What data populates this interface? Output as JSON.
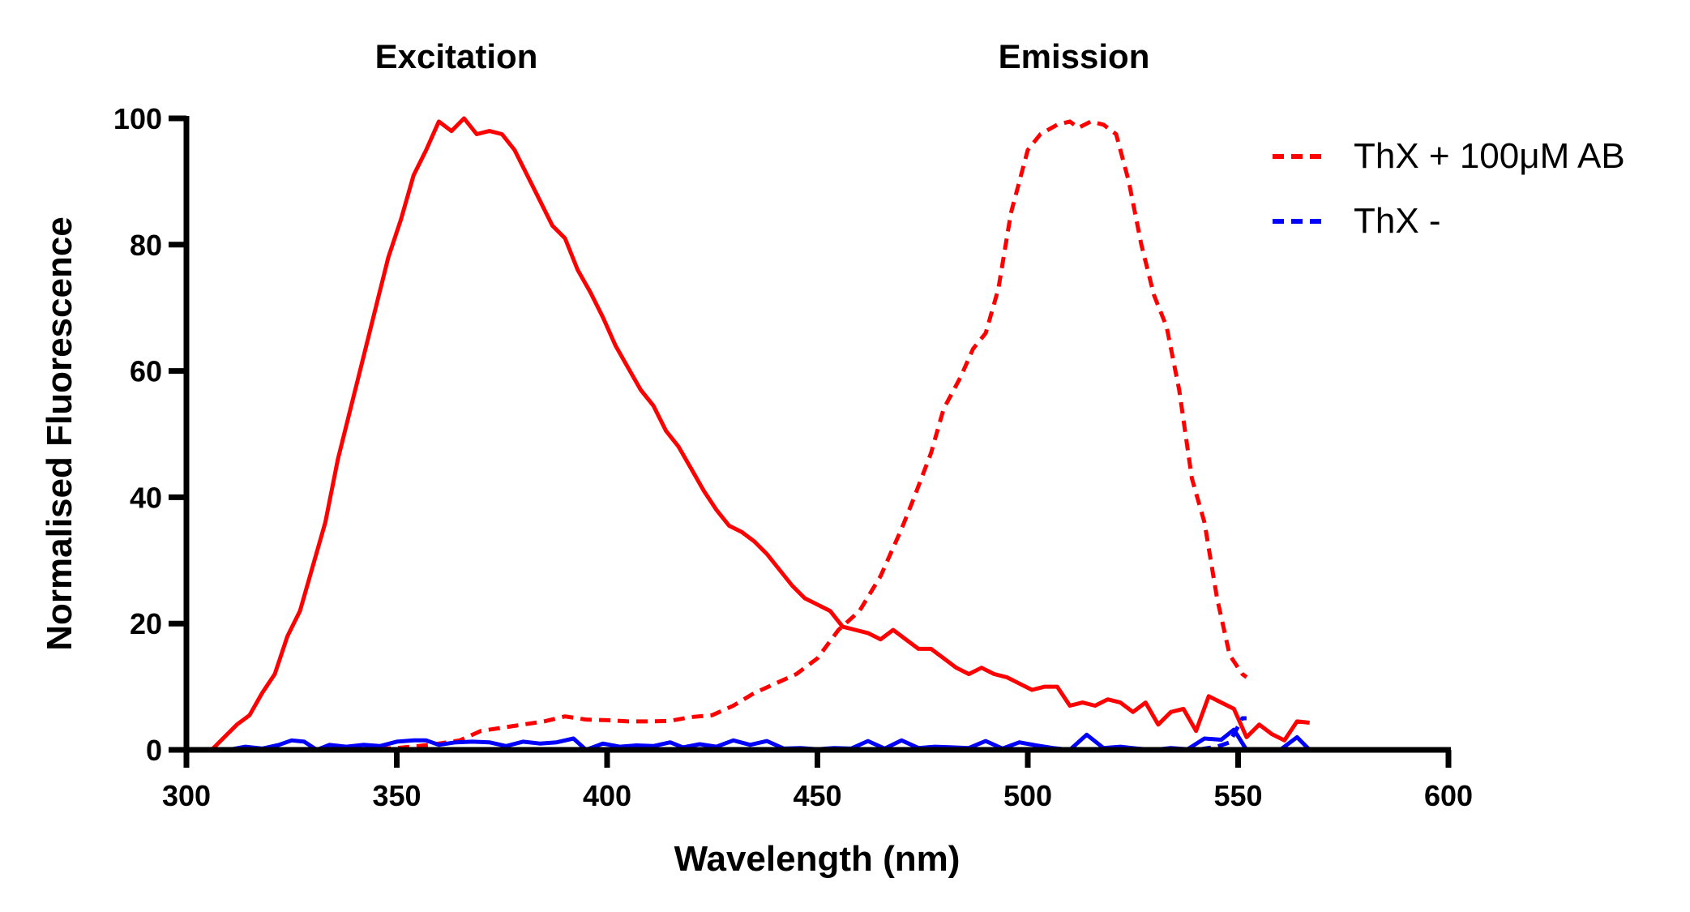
{
  "chart_data": {
    "type": "line",
    "xlabel": "Wavelength (nm)",
    "ylabel": "Normalised Fluorescence",
    "xlim": [
      300,
      600
    ],
    "ylim": [
      0,
      100
    ],
    "xticks": [
      300,
      350,
      400,
      450,
      500,
      550,
      600
    ],
    "yticks": [
      0,
      20,
      40,
      60,
      80,
      100
    ],
    "grid": false,
    "legend_position": "top-right",
    "annotations": [
      "Excitation",
      "Emission"
    ],
    "legend": [
      {
        "label": "ThX + 100μM AB",
        "color": "#ff0000",
        "dash": "dashed"
      },
      {
        "label": "ThX -",
        "color": "#0000ff",
        "dash": "dashed"
      }
    ],
    "series": [
      {
        "group": "Excitation",
        "color": "#ff0000",
        "style": "solid",
        "x": [
          306,
          309,
          312,
          315,
          318,
          321,
          324,
          327,
          330,
          333,
          336,
          339,
          342,
          345,
          348,
          351,
          354,
          357,
          360,
          363,
          366,
          369,
          372,
          375,
          378,
          381,
          384,
          387,
          390,
          393,
          396,
          399,
          402,
          405,
          408,
          411,
          414,
          417,
          420,
          423,
          426,
          429,
          432,
          435,
          438,
          441,
          444,
          447,
          450,
          453,
          456,
          459,
          462,
          465,
          468,
          471,
          474,
          477,
          480,
          483,
          486,
          489,
          492,
          495,
          498,
          501,
          504,
          507,
          510,
          513,
          516,
          519,
          522,
          525,
          528,
          531,
          534,
          537,
          540,
          543,
          546,
          549,
          552,
          555,
          558,
          561,
          564,
          567
        ],
        "y": [
          0,
          2,
          4,
          5.5,
          9,
          12,
          18,
          22,
          29,
          36,
          46,
          54,
          62,
          70,
          78,
          84,
          91,
          95,
          99.5,
          98,
          100,
          97.5,
          98,
          97.5,
          95,
          91,
          87,
          83,
          81,
          76,
          72.5,
          68.5,
          64,
          60.5,
          57,
          54.5,
          50.5,
          48,
          44.5,
          41,
          38,
          35.5,
          34.5,
          33,
          31,
          28.5,
          26,
          24,
          23,
          22,
          19.5,
          19,
          18.5,
          17.5,
          19,
          17.5,
          16,
          16,
          14.5,
          13,
          12,
          13,
          12,
          11.5,
          10.5,
          9.5,
          10,
          10,
          7,
          7.5,
          7,
          8,
          7.5,
          6,
          7.5,
          4,
          6,
          6.5,
          3,
          8.5,
          7.5,
          6.5,
          2,
          4,
          2.5,
          1.5,
          4.5,
          4.3
        ]
      },
      {
        "group": "Emission",
        "color": "#ff0000",
        "style": "dashed",
        "x": [
          306,
          320,
          340,
          350,
          355,
          360,
          365,
          370,
          375,
          380,
          385,
          390,
          395,
          400,
          405,
          410,
          415,
          420,
          425,
          430,
          435,
          440,
          445,
          450,
          455,
          460,
          465,
          470,
          473,
          477,
          480,
          484,
          487,
          490,
          493,
          496,
          500,
          503,
          507,
          510,
          512,
          515,
          518,
          521,
          524,
          527,
          530,
          533,
          536,
          539,
          542,
          545,
          548,
          551,
          552
        ],
        "y": [
          0,
          0,
          0,
          0.3,
          0.6,
          1,
          1.5,
          3,
          3.5,
          4,
          4.5,
          5.3,
          4.8,
          4.7,
          4.5,
          4.5,
          4.6,
          5.2,
          5.5,
          7,
          9,
          10.5,
          12,
          14.5,
          19,
          22,
          27.5,
          35,
          40,
          47,
          54,
          59,
          63.5,
          66,
          73,
          85,
          95,
          97.5,
          99,
          99.5,
          98.5,
          99.5,
          99,
          97.5,
          90,
          80,
          72,
          67,
          57,
          43,
          36,
          24,
          15,
          12,
          11.5
        ]
      },
      {
        "group": "Excitation",
        "color": "#0000ff",
        "style": "solid",
        "x": [
          306,
          310,
          314,
          318,
          322,
          325,
          328,
          331,
          334,
          338,
          342,
          346,
          350,
          354,
          357,
          360,
          364,
          368,
          372,
          376,
          380,
          384,
          388,
          392,
          395,
          399,
          403,
          407,
          411,
          415,
          418,
          422,
          426,
          430,
          434,
          438,
          442,
          446,
          450,
          454,
          458,
          462,
          466,
          470,
          474,
          478,
          482,
          486,
          490,
          494,
          498,
          502,
          506,
          510,
          514,
          518,
          522,
          526,
          530,
          534,
          538,
          542,
          546,
          549,
          552,
          556,
          560,
          564,
          567
        ],
        "y": [
          0,
          0,
          0.5,
          0.2,
          0.8,
          1.5,
          1.3,
          0,
          0.8,
          0.5,
          0.8,
          0.6,
          1.3,
          1.5,
          1.5,
          0.8,
          1.2,
          1.3,
          1.2,
          0.6,
          1.3,
          1,
          1.2,
          1.8,
          0,
          1,
          0.5,
          0.7,
          0.6,
          1.2,
          0.4,
          0.9,
          0.5,
          1.5,
          0.8,
          1.4,
          0.2,
          0.3,
          0.1,
          0.3,
          0.2,
          1.4,
          0.2,
          1.5,
          0.3,
          0.5,
          0.4,
          0.3,
          1.4,
          0.2,
          1.2,
          0.7,
          0.3,
          0,
          2.4,
          0.3,
          0.5,
          0.2,
          0,
          0.3,
          0.1,
          1.8,
          1.6,
          3.2,
          0,
          0,
          0,
          2,
          0
        ]
      },
      {
        "group": "Emission",
        "color": "#0000ff",
        "style": "dashed",
        "x": [
          306,
          330,
          360,
          390,
          420,
          450,
          480,
          510,
          530,
          540,
          545,
          548,
          551,
          552
        ],
        "y": [
          0,
          0,
          0,
          0,
          0,
          0,
          0,
          0,
          0,
          0,
          0.5,
          1.2,
          5,
          5
        ]
      }
    ]
  }
}
